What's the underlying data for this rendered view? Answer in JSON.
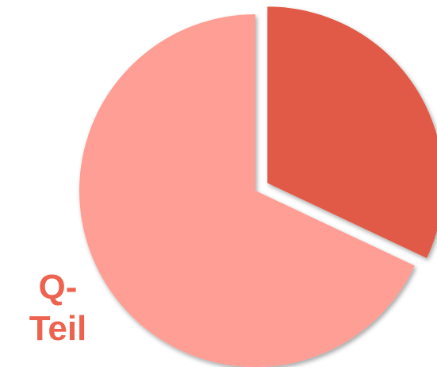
{
  "chart_data": {
    "type": "pie",
    "title": "",
    "slices": [
      {
        "label": "",
        "value": 32,
        "color": "#E05A47",
        "exploded": true
      },
      {
        "label": "Q-Teil",
        "value": 68,
        "color": "#FF9E95",
        "exploded": false
      }
    ]
  },
  "labels": {
    "q_teil_line1": "Q-",
    "q_teil_line2": "Teil",
    "q_teil_color": "#EE6350"
  }
}
